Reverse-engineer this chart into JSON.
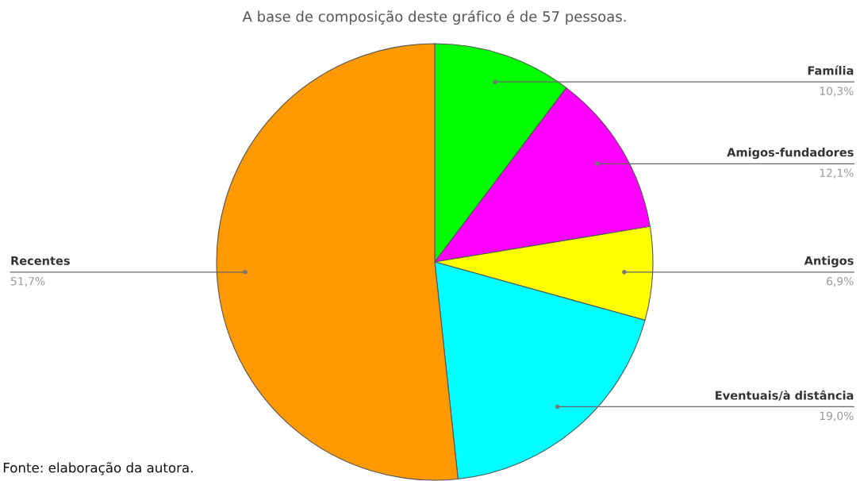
{
  "chart_data": {
    "type": "pie",
    "title": "A base de composição deste gráfico é de 57 pessoas.",
    "categories": [
      "Família",
      "Amigos-fundadores",
      "Antigos",
      "Eventuais/à distância",
      "Recentes"
    ],
    "values": [
      10.3,
      12.1,
      6.9,
      19.0,
      51.7
    ],
    "colors": [
      "#00ff00",
      "#ff00ff",
      "#ffff00",
      "#00ffff",
      "#ff9900"
    ],
    "value_labels": [
      "10,3%",
      "12,1%",
      "6,9%",
      "19,0%",
      "51,7%"
    ],
    "annotations": [
      "Fonte: elaboração da autora."
    ],
    "legend": false
  }
}
